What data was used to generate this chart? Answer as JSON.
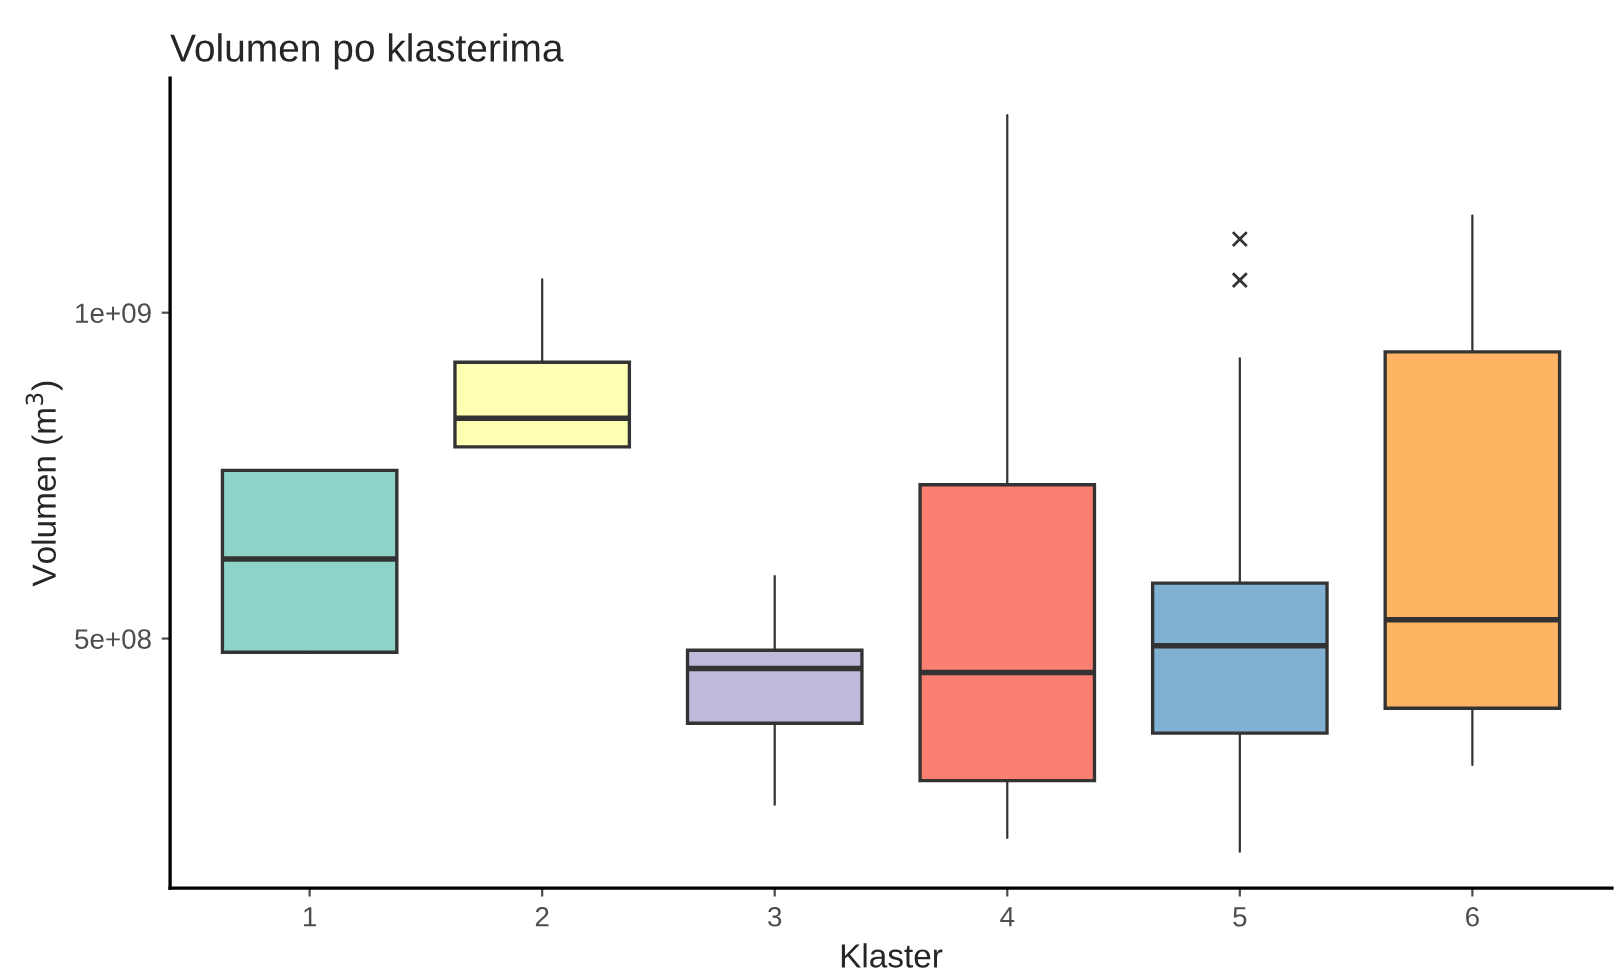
{
  "chart_data": {
    "type": "box",
    "title": "Volumen po klasterima",
    "xlabel": "Klaster",
    "ylabel": "Volumen (m$^{3}$)",
    "categories": [
      "1",
      "2",
      "3",
      "4",
      "5",
      "6"
    ],
    "colors": [
      "#8dd3c7",
      "#ffffb3",
      "#bebada",
      "#fb8072",
      "#80b1d3",
      "#fdb462"
    ],
    "boxes": [
      {
        "low": 479000000,
        "q1": 479000000,
        "median": 622000000,
        "q3": 758000000,
        "high": 758000000
      },
      {
        "low": 794000000,
        "q1": 794000000,
        "median": 838000000,
        "q3": 924000000,
        "high": 1051000000
      },
      {
        "low": 245000000,
        "q1": 370000000,
        "median": 454000000,
        "q3": 482000000,
        "high": 596000000
      },
      {
        "low": 194000000,
        "q1": 282000000,
        "median": 448000000,
        "q3": 736000000,
        "high": 1303000000
      },
      {
        "low": 173000000,
        "q1": 355000000,
        "median": 489000000,
        "q3": 585000000,
        "high": 930000000,
        "outliers": [
          1050000000,
          1113000000
        ]
      },
      {
        "low": 306000000,
        "q1": 393000000,
        "median": 529000000,
        "q3": 940000000,
        "high": 1149000000
      }
    ],
    "ylim": [
      117000000,
      1360000000
    ],
    "yticks": [
      {
        "value": 500000000,
        "label": "5e+08"
      },
      {
        "value": 1000000000,
        "label": "1e+09"
      }
    ],
    "marker": "cross",
    "grid": false
  }
}
